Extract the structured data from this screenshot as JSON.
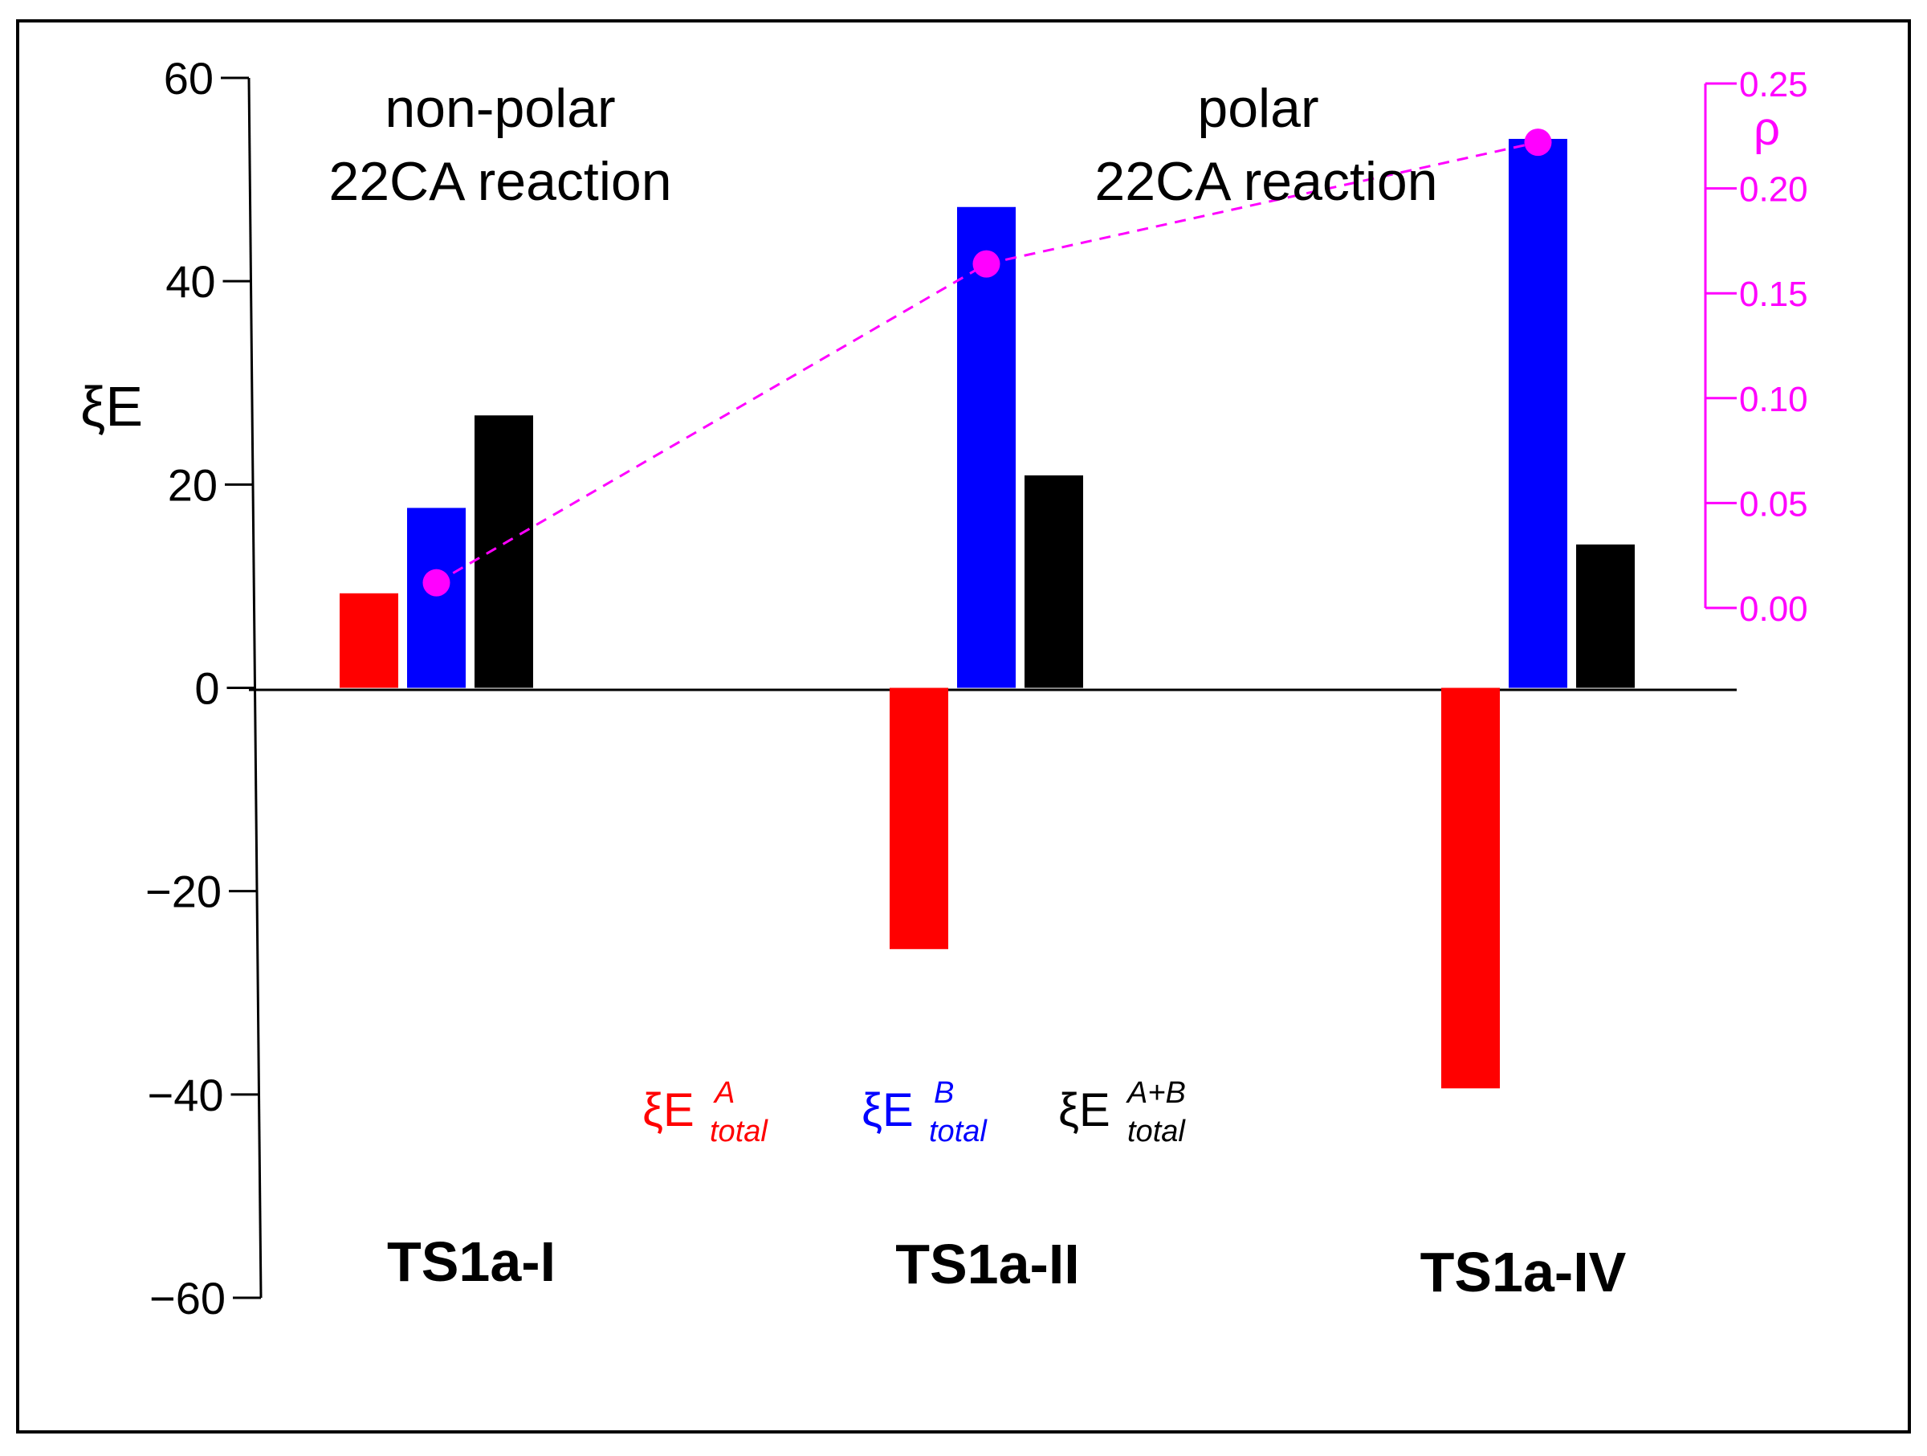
{
  "chart_data": {
    "type": "bar",
    "categories": [
      "TS1a-I",
      "TS1a-II",
      "TS1a-IV"
    ],
    "series": [
      {
        "name": "ξE^A_total",
        "color": "#ff0000",
        "values": [
          9.3,
          -25.7,
          -39.4
        ]
      },
      {
        "name": "ξE^B_total",
        "color": "#0000ff",
        "values": [
          17.7,
          47.3,
          54.0
        ]
      },
      {
        "name": "ξE^A+B_total",
        "color": "#000000",
        "values": [
          26.8,
          20.9,
          14.1
        ]
      }
    ],
    "ylabel": "ξE",
    "ylim": [
      -60,
      60
    ],
    "yticks": [
      60,
      40,
      20,
      0,
      -20,
      -40,
      -60
    ],
    "yticklabels": [
      "60",
      "40",
      "20",
      "0",
      "−20",
      "−40",
      "−60"
    ],
    "secondary_axis": {
      "label": "ρ",
      "color": "#ff00ff",
      "range": [
        0.0,
        0.25
      ],
      "ticks": [
        0.25,
        0.2,
        0.15,
        0.1,
        0.05,
        0.0
      ],
      "ticklabels": [
        "0.25",
        "0.20",
        "0.15",
        "0.10",
        "0.05",
        "0.00"
      ],
      "series_values": [
        0.012,
        0.164,
        0.222
      ],
      "line_style": "dashed"
    },
    "region_annotations": [
      {
        "line1": "non-polar",
        "line2": "22CA reaction"
      },
      {
        "line1": "polar",
        "line2": "22CA reaction"
      }
    ],
    "legend": [
      {
        "symbol": "ξE",
        "sup": "A",
        "sub": "total",
        "color": "#ff0000"
      },
      {
        "symbol": "ξE",
        "sup": "B",
        "sub": "total",
        "color": "#0000ff"
      },
      {
        "symbol": "ξE",
        "sup": "A+B",
        "sub": "total",
        "color": "#000000"
      }
    ]
  }
}
